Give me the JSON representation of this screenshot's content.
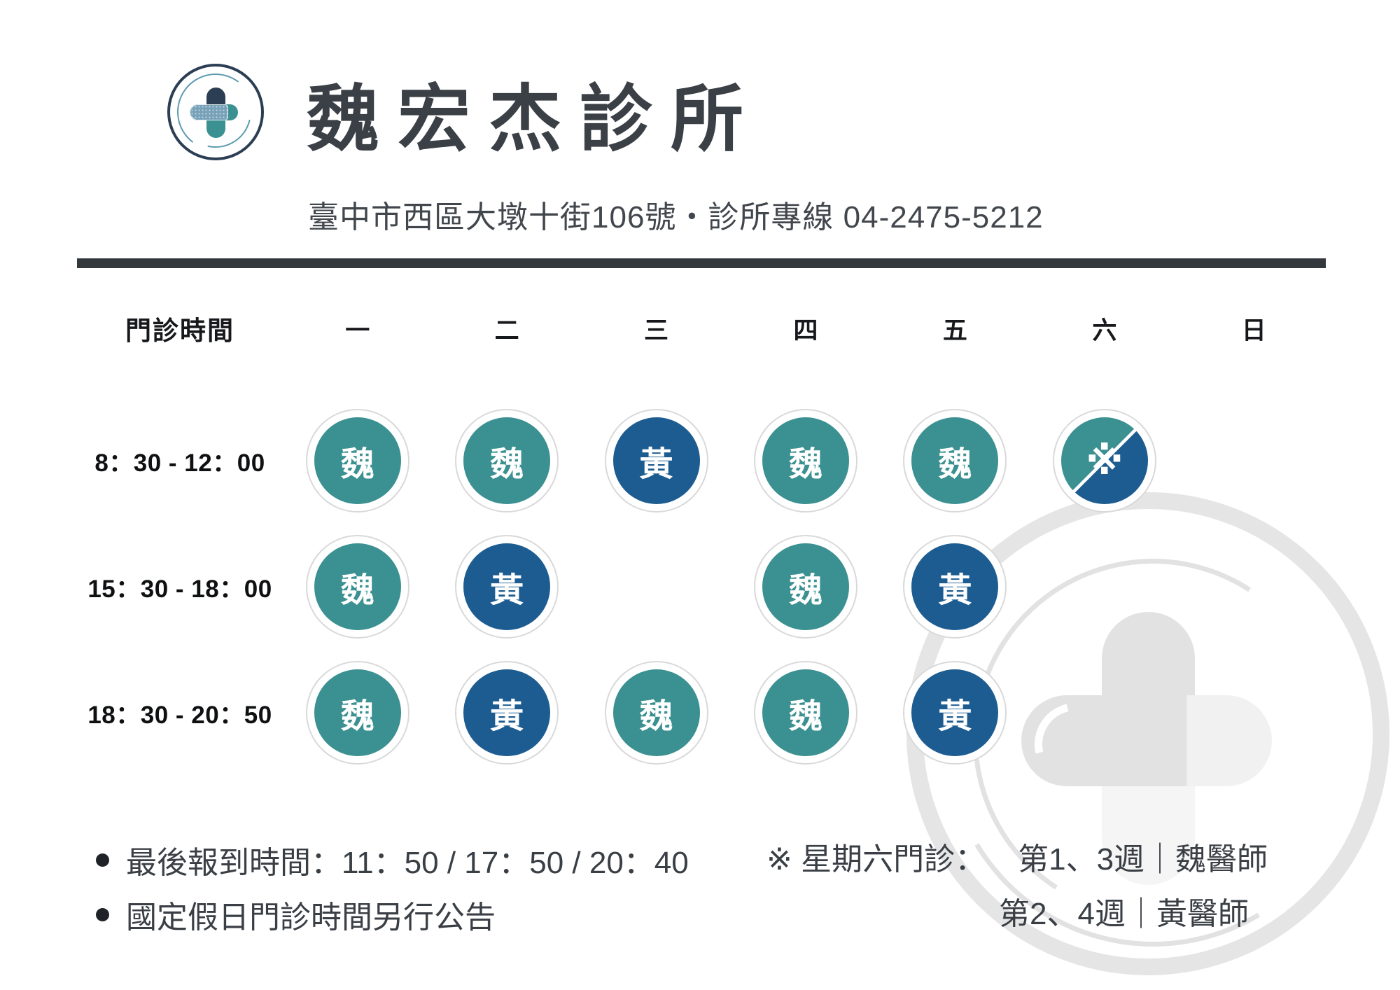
{
  "clinic": {
    "name": "魏宏杰診所",
    "address_line": "臺中市西區大墩十街106號・診所專線 04-2475-5212"
  },
  "schedule": {
    "time_header": "門診時間",
    "days": [
      "一",
      "二",
      "三",
      "四",
      "五",
      "六",
      "日"
    ],
    "rows": [
      {
        "time": "8：30 - 12：00",
        "cells": [
          {
            "doctor": "魏",
            "type": "teal"
          },
          {
            "doctor": "魏",
            "type": "teal"
          },
          {
            "doctor": "黃",
            "type": "blue"
          },
          {
            "doctor": "魏",
            "type": "teal"
          },
          {
            "doctor": "魏",
            "type": "teal"
          },
          {
            "doctor": "※",
            "type": "split"
          },
          {
            "doctor": "",
            "type": "empty"
          }
        ]
      },
      {
        "time": "15：30 - 18：00",
        "cells": [
          {
            "doctor": "魏",
            "type": "teal"
          },
          {
            "doctor": "黃",
            "type": "blue"
          },
          {
            "doctor": "",
            "type": "empty"
          },
          {
            "doctor": "魏",
            "type": "teal"
          },
          {
            "doctor": "黃",
            "type": "blue"
          },
          {
            "doctor": "",
            "type": "empty"
          },
          {
            "doctor": "",
            "type": "empty"
          }
        ]
      },
      {
        "time": "18：30 - 20：50",
        "cells": [
          {
            "doctor": "魏",
            "type": "teal"
          },
          {
            "doctor": "黃",
            "type": "blue"
          },
          {
            "doctor": "魏",
            "type": "teal"
          },
          {
            "doctor": "魏",
            "type": "teal"
          },
          {
            "doctor": "黃",
            "type": "blue"
          },
          {
            "doctor": "",
            "type": "empty"
          },
          {
            "doctor": "",
            "type": "empty"
          }
        ]
      }
    ]
  },
  "notes": {
    "bullets": [
      "最後報到時間：11：50 / 17：50 / 20：40",
      "國定假日門診時間另行公告"
    ],
    "saturday_note": {
      "label": "※ 星期六門診：",
      "line1_value": "第1、3週｜魏醫師",
      "line2_value": "第2、4週｜黃醫師"
    }
  },
  "colors": {
    "teal": "#3b9091",
    "blue": "#1d5c90",
    "navy": "#2b3e53",
    "divider": "#33383d",
    "watermark": "#e5e5e5"
  }
}
